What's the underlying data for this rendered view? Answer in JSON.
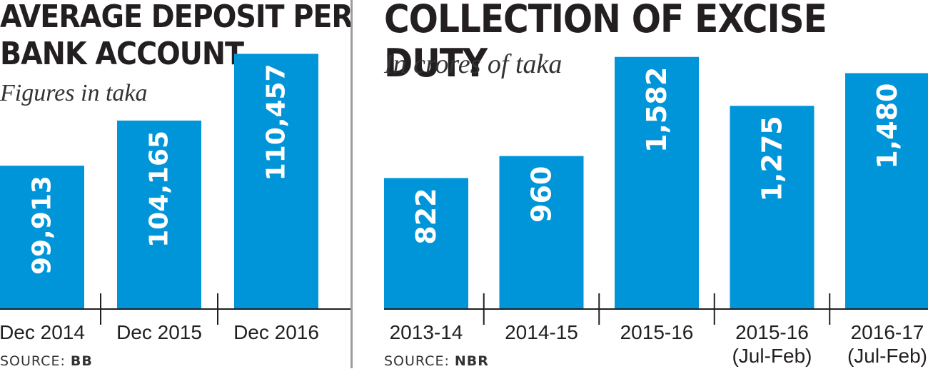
{
  "chart_data": [
    {
      "type": "bar",
      "title": "AVERAGE DEPOSIT PER BANK ACCOUNT",
      "title_lines": [
        "AVERAGE DEPOSIT PER",
        "BANK ACCOUNT"
      ],
      "subtitle": "Figures in taka",
      "source_label": "SOURCE:",
      "source": "BB",
      "categories": [
        "Dec 2014",
        "Dec 2015",
        "Dec 2016"
      ],
      "values": [
        99913,
        104165,
        110457
      ],
      "value_labels": [
        "99,913",
        "104,165",
        "110,457"
      ],
      "bar_color": "#0095d9"
    },
    {
      "type": "bar",
      "title": "COLLECTION OF EXCISE DUTY",
      "subtitle": "In crores of taka",
      "source_label": "SOURCE:",
      "source": "NBR",
      "categories": [
        "2013-14",
        "2014-15",
        "2015-16",
        "2015-16 (Jul-Feb)",
        "2016-17 (Jul-Feb)"
      ],
      "category_lines": [
        [
          "2013-14"
        ],
        [
          "2014-15"
        ],
        [
          "2015-16"
        ],
        [
          "2015-16",
          "(Jul-Feb)"
        ],
        [
          "2016-17",
          "(Jul-Feb)"
        ]
      ],
      "values": [
        822,
        960,
        1582,
        1275,
        1480
      ],
      "value_labels": [
        "822",
        "960",
        "1,582",
        "1,275",
        "1,480"
      ],
      "bar_color": "#0095d9"
    }
  ]
}
